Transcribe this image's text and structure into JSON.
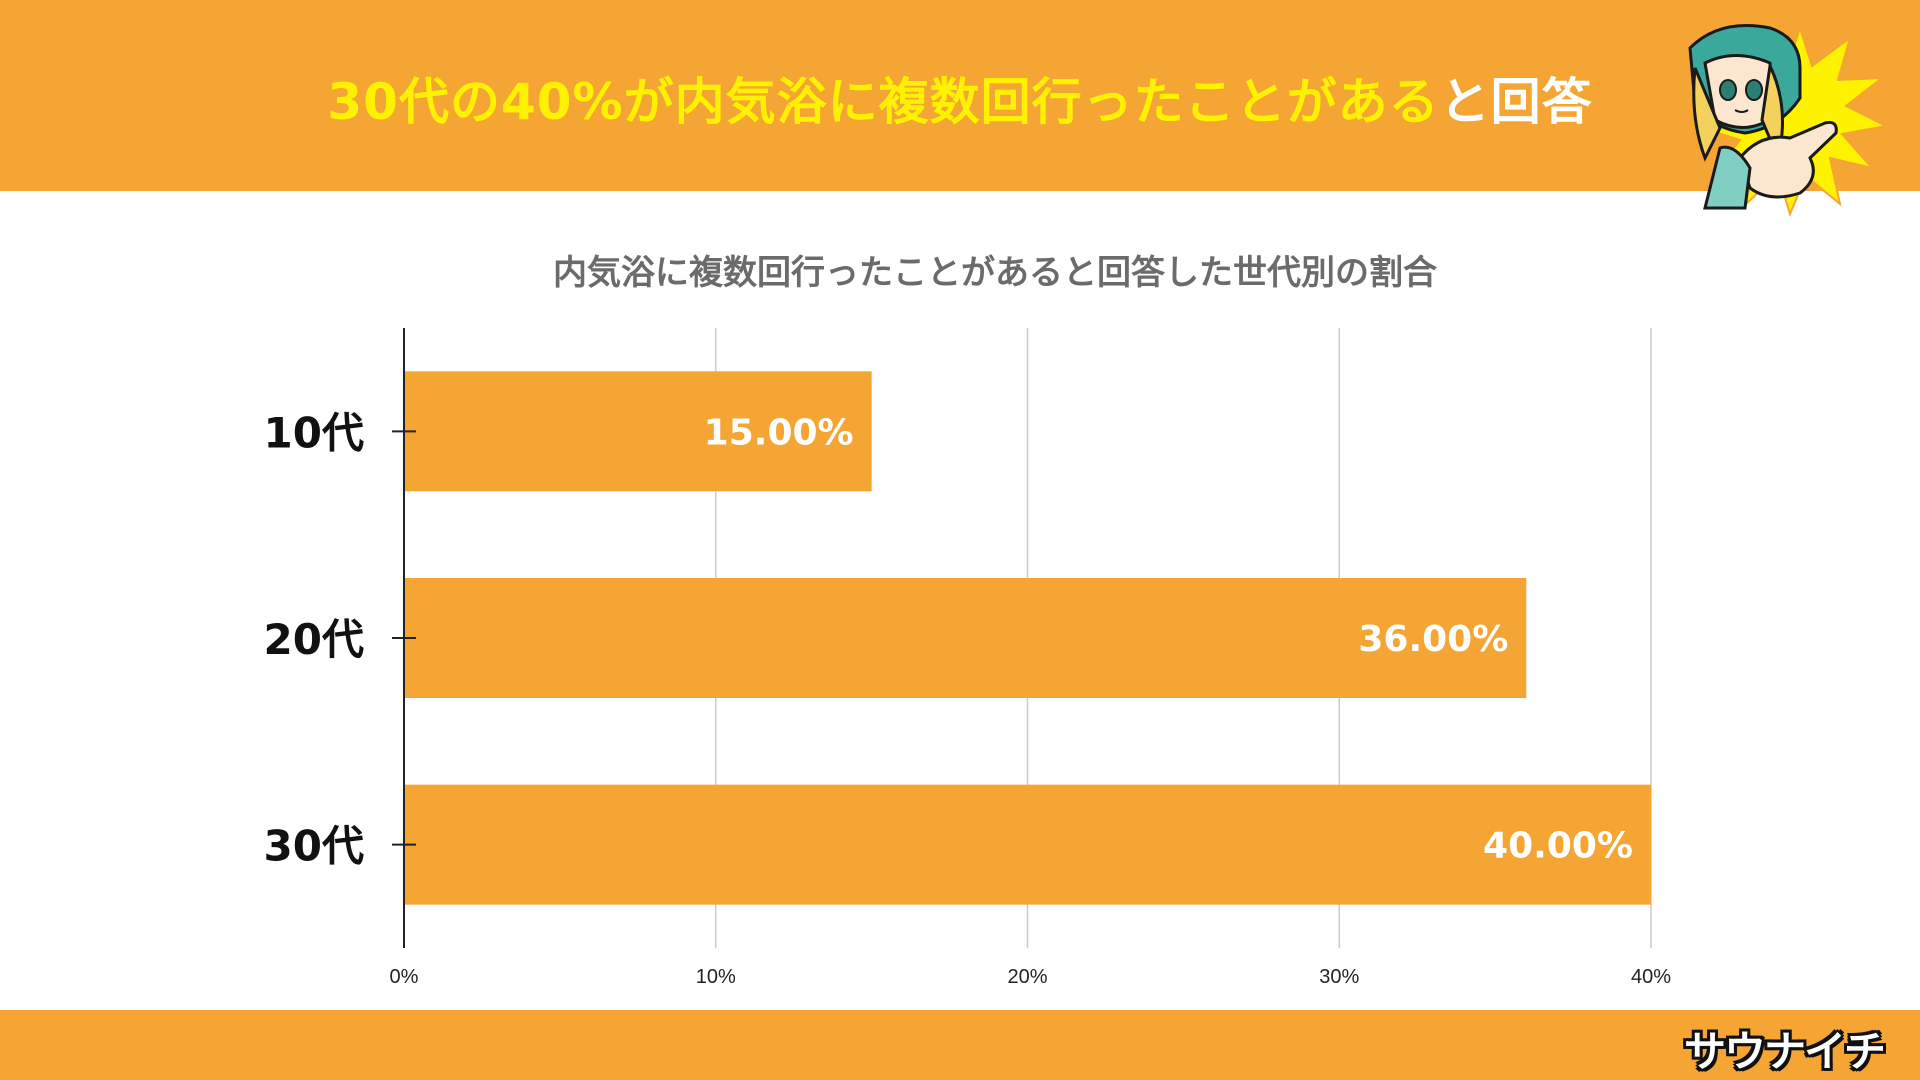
{
  "header": {
    "title_highlight": "30代の40%が内気浴に複数回行ったことがある",
    "title_rest": "と回答"
  },
  "footer": {
    "logo": "サウナイチ"
  },
  "colors": {
    "accent": "#F4A533",
    "highlight": "#FFF200",
    "bar": "#F4A533"
  },
  "mascot": {
    "icon": "pointing-girl-mascot-icon"
  },
  "chart_data": {
    "type": "bar",
    "orientation": "horizontal",
    "title": "内気浴に複数回行ったことがあると回答した世代別の割合",
    "categories": [
      "10代",
      "20代",
      "30代"
    ],
    "values": [
      15.0,
      36.0,
      40.0
    ],
    "data_labels": [
      "15.00%",
      "36.00%",
      "40.00%"
    ],
    "xlim": [
      0,
      40
    ],
    "x_ticks": [
      "0%",
      "10%",
      "20%",
      "30%",
      "40%"
    ],
    "grid": true,
    "xlabel": "",
    "ylabel": ""
  }
}
